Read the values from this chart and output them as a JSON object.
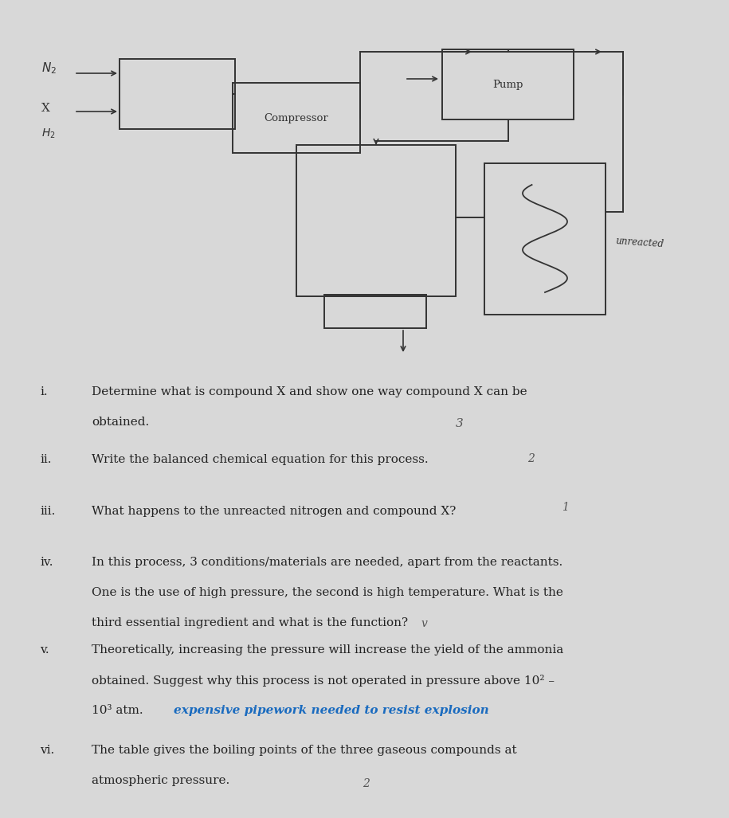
{
  "bg_color": "#d8d8d8",
  "diagram": {
    "n2_label": "N2",
    "x_label": "X",
    "h2_label": "H2",
    "compressor_label": "Compressor",
    "pump_label": "Pump",
    "unreacted_label": "unreacted"
  },
  "text_color": "#222222",
  "q1_num": "i.",
  "q1_text1": "Determine what is compound X and show one way compound X can be",
  "q1_text2": "obtained.",
  "q1_annot": "3",
  "q2_num": "ii.",
  "q2_text": "Write the balanced chemical equation for this process.",
  "q2_annot": "2",
  "q3_num": "iii.",
  "q3_text": "What happens to the unreacted nitrogen and compound X?",
  "q3_annot": "1",
  "q4_num": "iv.",
  "q4_text1": "In this process, 3 conditions/materials are needed, apart from the reactants.",
  "q4_text2": "One is the use of high pressure, the second is high temperature. What is the",
  "q4_text3": "third essential ingredient and what is the function?",
  "q4_annot": "v",
  "q5_num": "v.",
  "q5_text1": "Theoretically, increasing the pressure will increase the yield of the ammonia",
  "q5_text2": "obtained. Suggest why this process is not operated in pressure above 10² –",
  "q5_text3": "10³ atm.",
  "q5_annot": "expensive pipework needed to resist explosion",
  "q5_annot_color": "#1a6bbf",
  "q6_num": "vi.",
  "q6_text1": "The table gives the boiling points of the three gaseous compounds at",
  "q6_text2": "atmospheric pressure.",
  "q6_annot": "2"
}
